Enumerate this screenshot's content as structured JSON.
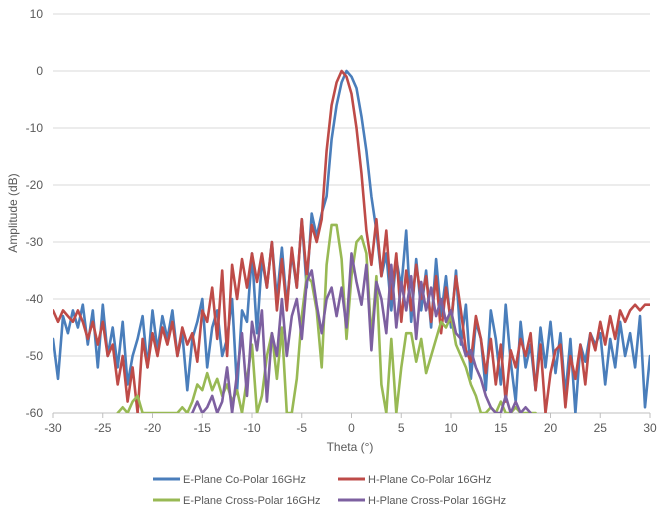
{
  "chart_data": {
    "type": "line",
    "title": "",
    "xlabel": "Theta (°)",
    "ylabel": "Amplitude (dB)",
    "xlim": [
      -30,
      30
    ],
    "ylim": [
      -60,
      10
    ],
    "xticks": [
      "-30",
      "-25",
      "-20",
      "-15",
      "-10",
      "-5",
      "0",
      "5",
      "10",
      "15",
      "20",
      "25",
      "30"
    ],
    "yticks": [
      "10",
      "0",
      "-10",
      "-20",
      "-30",
      "-40",
      "-50",
      "-60"
    ],
    "grid": "horizontal",
    "legend_position": "bottom",
    "series": [
      {
        "name": "E-Plane Co-Polar 16GHz",
        "color": "#4a7ebb",
        "x": [
          -30,
          -29.5,
          -29,
          -28.5,
          -28,
          -27.5,
          -27,
          -26.5,
          -26,
          -25.5,
          -25,
          -24.5,
          -24,
          -23.5,
          -23,
          -22.5,
          -22,
          -21.5,
          -21,
          -20.5,
          -20,
          -19.5,
          -19,
          -18.5,
          -18,
          -17.5,
          -17,
          -16.5,
          -16,
          -15.5,
          -15,
          -14.5,
          -14,
          -13.5,
          -13,
          -12.5,
          -12,
          -11.5,
          -11,
          -10.5,
          -10,
          -9.5,
          -9,
          -8.5,
          -8,
          -7.5,
          -7,
          -6.5,
          -6,
          -5.5,
          -5,
          -4.5,
          -4,
          -3.5,
          -3,
          -2.5,
          -2,
          -1.5,
          -1,
          -0.5,
          0,
          0.5,
          1,
          1.5,
          2,
          2.5,
          3,
          3.5,
          4,
          4.5,
          5,
          5.5,
          6,
          6.5,
          7,
          7.5,
          8,
          8.5,
          9,
          9.5,
          10,
          10.5,
          11,
          11.5,
          12,
          12.5,
          13,
          13.5,
          14,
          14.5,
          15,
          15.5,
          16,
          16.5,
          17,
          17.5,
          18,
          18.5,
          19,
          19.5,
          20,
          20.5,
          21,
          21.5,
          22,
          22.5,
          23,
          23.5,
          24,
          24.5,
          25,
          25.5,
          26,
          26.5,
          27,
          27.5,
          28,
          28.5,
          29,
          29.5,
          30
        ],
        "values": [
          -47,
          -54,
          -43,
          -46,
          -42,
          -45,
          -41,
          -48,
          -42,
          -52,
          -41,
          -50,
          -45,
          -52,
          -44,
          -55,
          -50,
          -47,
          -43,
          -52,
          -42,
          -49,
          -43,
          -47,
          -42,
          -50,
          -46,
          -56,
          -47,
          -44,
          -40,
          -52,
          -45,
          -42,
          -50,
          -47,
          -40,
          -56,
          -42,
          -44,
          -32,
          -46,
          -33,
          -38,
          -30,
          -40,
          -31,
          -41,
          -32,
          -38,
          -26,
          -38,
          -25,
          -29,
          -25,
          -22,
          -12,
          -6,
          -2,
          0,
          -1,
          -3,
          -8,
          -14,
          -22,
          -28,
          -36,
          -32,
          -42,
          -33,
          -38,
          -28,
          -44,
          -33,
          -42,
          -35,
          -45,
          -33,
          -43,
          -36,
          -45,
          -35,
          -48,
          -41,
          -54,
          -44,
          -47,
          -56,
          -42,
          -47,
          -55,
          -41,
          -51,
          -58,
          -44,
          -52,
          -48,
          -56,
          -45,
          -52,
          -44,
          -53,
          -46,
          -57,
          -47,
          -60,
          -48,
          -51,
          -46,
          -48,
          -46,
          -55,
          -47,
          -52,
          -44,
          -50,
          -46,
          -52,
          -43,
          -59,
          -50
        ]
      },
      {
        "name": "H-Plane Co-Polar 16GHz",
        "color": "#be4b48",
        "x": [
          -30,
          -29.5,
          -29,
          -28.5,
          -28,
          -27.5,
          -27,
          -26.5,
          -26,
          -25.5,
          -25,
          -24.5,
          -24,
          -23.5,
          -23,
          -22.5,
          -22,
          -21.5,
          -21,
          -20.5,
          -20,
          -19.5,
          -19,
          -18.5,
          -18,
          -17.5,
          -17,
          -16.5,
          -16,
          -15.5,
          -15,
          -14.5,
          -14,
          -13.5,
          -13,
          -12.5,
          -12,
          -11.5,
          -11,
          -10.5,
          -10,
          -9.5,
          -9,
          -8.5,
          -8,
          -7.5,
          -7,
          -6.5,
          -6,
          -5.5,
          -5,
          -4.5,
          -4,
          -3.5,
          -3,
          -2.5,
          -2,
          -1.5,
          -1,
          -0.5,
          0,
          0.5,
          1,
          1.5,
          2,
          2.5,
          3,
          3.5,
          4,
          4.5,
          5,
          5.5,
          6,
          6.5,
          7,
          7.5,
          8,
          8.5,
          9,
          9.5,
          10,
          10.5,
          11,
          11.5,
          12,
          12.5,
          13,
          13.5,
          14,
          14.5,
          15,
          15.5,
          16,
          16.5,
          17,
          17.5,
          18,
          18.5,
          19,
          19.5,
          20,
          20.5,
          21,
          21.5,
          22,
          22.5,
          23,
          23.5,
          24,
          24.5,
          25,
          25.5,
          26,
          26.5,
          27,
          27.5,
          28,
          28.5,
          29,
          29.5,
          30
        ],
        "values": [
          -42,
          -44,
          -42,
          -43,
          -44,
          -42,
          -44,
          -47,
          -44,
          -48,
          -44,
          -50,
          -48,
          -55,
          -50,
          -58,
          -52,
          -60,
          -47,
          -52,
          -46,
          -50,
          -45,
          -48,
          -44,
          -50,
          -45,
          -48,
          -46,
          -51,
          -42,
          -44,
          -38,
          -47,
          -35,
          -50,
          -34,
          -40,
          -33,
          -38,
          -32,
          -37,
          -32,
          -38,
          -30,
          -42,
          -33,
          -42,
          -31,
          -38,
          -26,
          -36,
          -27,
          -30,
          -26,
          -14,
          -6,
          -2,
          0,
          -1,
          -4,
          -10,
          -18,
          -28,
          -34,
          -26,
          -36,
          -28,
          -40,
          -32,
          -44,
          -35,
          -42,
          -34,
          -40,
          -36,
          -44,
          -36,
          -46,
          -38,
          -44,
          -36,
          -42,
          -49,
          -51,
          -43,
          -47,
          -53,
          -47,
          -55,
          -48,
          -58,
          -49,
          -52,
          -47,
          -50,
          -46,
          -56,
          -48,
          -60,
          -53,
          -49,
          -48,
          -59,
          -50,
          -54,
          -48,
          -55,
          -46,
          -49,
          -44,
          -48,
          -43,
          -47,
          -42,
          -44,
          -42,
          -41,
          -42,
          -41,
          -41
        ]
      },
      {
        "name": "E-Plane Cross-Polar 16GHz",
        "color": "#98b954",
        "x": [
          -23.5,
          -23,
          -22.5,
          -22,
          -21.5,
          -21,
          -20.5,
          -20,
          -19.5,
          -17.5,
          -17,
          -16.5,
          -16,
          -15.5,
          -15,
          -14.5,
          -14,
          -13.5,
          -13,
          -12.5,
          -12,
          -11.5,
          -11,
          -10.5,
          -10,
          -9.5,
          -9,
          -8.5,
          -8,
          -7.5,
          -7,
          -6.5,
          -6,
          -5.5,
          -5,
          -4.5,
          -4,
          -3.5,
          -3,
          -2.5,
          -2,
          -1.5,
          -1,
          -0.5,
          0,
          0.5,
          1,
          1.5,
          2,
          2.5,
          3,
          3.5,
          4,
          4.5,
          5,
          5.5,
          6,
          6.5,
          7,
          7.5,
          8,
          8.5,
          9,
          9.5,
          10,
          10.5,
          11,
          11.5,
          12,
          12.5,
          13,
          13.5,
          14,
          14.5,
          15,
          15.5,
          16,
          16.5,
          17,
          17.5,
          18,
          18.5
        ],
        "values": [
          -60,
          -59,
          -60,
          -58,
          -57,
          -60,
          -60,
          -60,
          -60,
          -60,
          -59,
          -60,
          -58,
          -55,
          -56,
          -53,
          -56,
          -54,
          -57,
          -55,
          -58,
          -56,
          -60,
          -54,
          -48,
          -60,
          -57,
          -50,
          -46,
          -54,
          -45,
          -60,
          -60,
          -54,
          -43,
          -36,
          -37,
          -42,
          -52,
          -34,
          -27,
          -27,
          -33,
          -47,
          -36,
          -30,
          -29,
          -32,
          -47,
          -36,
          -55,
          -60,
          -47,
          -60,
          -52,
          -46,
          -46,
          -51,
          -47,
          -53,
          -50,
          -47,
          -44,
          -45,
          -43,
          -48,
          -50,
          -52,
          -55,
          -57,
          -60,
          -60,
          -59,
          -60,
          -58,
          -60,
          -60,
          -59,
          -60,
          -60,
          -60,
          -60
        ]
      },
      {
        "name": "H-Plane Cross-Polar 16GHz",
        "color": "#7d60a0",
        "x": [
          -16,
          -15.5,
          -15,
          -14.5,
          -14,
          -13.5,
          -13,
          -12.5,
          -12,
          -11.5,
          -11,
          -10.5,
          -10,
          -9.5,
          -9,
          -8.5,
          -8,
          -7.5,
          -7,
          -6.5,
          -6,
          -5.5,
          -5,
          -4.5,
          -4,
          -3.5,
          -3,
          -2.5,
          -2,
          -1.5,
          -1,
          -0.5,
          0,
          0.5,
          1,
          1.5,
          2,
          2.5,
          3,
          3.5,
          4,
          4.5,
          5,
          5.5,
          6,
          6.5,
          7,
          7.5,
          8,
          8.5,
          9,
          9.5,
          10,
          10.5,
          11,
          11.5,
          12,
          12.5,
          13,
          13.5,
          14,
          14.5,
          15,
          15.5,
          16,
          16.5,
          17,
          17.5,
          18
        ],
        "values": [
          -60,
          -58,
          -60,
          -59,
          -57,
          -60,
          -58,
          -52,
          -60,
          -53,
          -46,
          -57,
          -44,
          -49,
          -42,
          -58,
          -46,
          -50,
          -40,
          -50,
          -43,
          -40,
          -47,
          -37,
          -35,
          -41,
          -46,
          -40,
          -38,
          -43,
          -38,
          -45,
          -32,
          -37,
          -41,
          -34,
          -49,
          -37,
          -40,
          -46,
          -34,
          -45,
          -37,
          -42,
          -36,
          -47,
          -37,
          -42,
          -38,
          -43,
          -40,
          -44,
          -42,
          -46,
          -47,
          -50,
          -49,
          -52,
          -54,
          -57,
          -59,
          -60,
          -60,
          -57,
          -60,
          -58,
          -60,
          -59,
          -60
        ]
      }
    ]
  }
}
